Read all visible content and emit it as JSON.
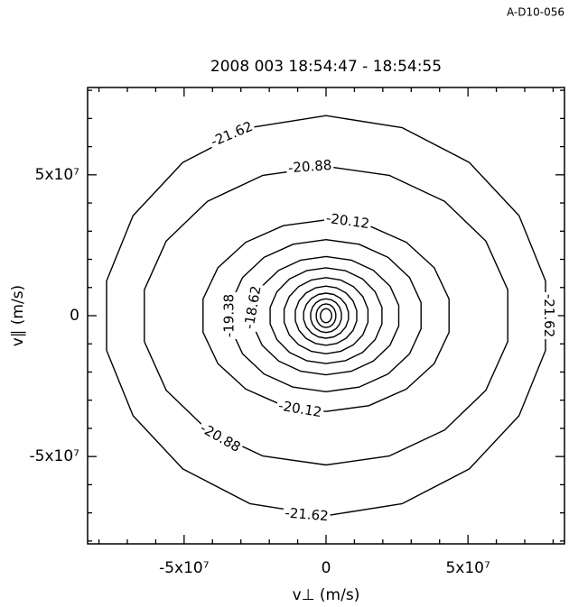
{
  "corner_label": "A-D10-056",
  "chart_data": {
    "type": "contour",
    "title": "2008 003 18:54:47 - 18:54:55",
    "xlabel": "v⊥ (m/s)",
    "ylabel": "v∥ (m/s)",
    "xlim": [
      -84000000,
      84000000
    ],
    "ylim": [
      -81000000,
      81000000
    ],
    "xticks": [
      {
        "value": -50000000,
        "label": "-5x10⁷"
      },
      0,
      {
        "value": 50000000,
        "label": "5x10⁷"
      }
    ],
    "yticks": [
      {
        "value": -50000000,
        "label": "-5x10⁷"
      },
      0,
      {
        "value": 50000000,
        "label": "5x10⁷"
      }
    ],
    "xminorticks": [
      -80000000,
      -70000000,
      -60000000,
      -40000000,
      -30000000,
      -20000000,
      -10000000,
      10000000,
      20000000,
      30000000,
      40000000,
      60000000,
      70000000,
      80000000
    ],
    "yminorticks": [
      -80000000,
      -70000000,
      -60000000,
      -40000000,
      -30000000,
      -20000000,
      -10000000,
      10000000,
      20000000,
      30000000,
      40000000,
      60000000,
      70000000,
      80000000
    ],
    "contours": [
      {
        "level": -21.62,
        "show_label": true,
        "rx": 78500000,
        "ry": 71000000
      },
      {
        "level": -20.88,
        "show_label": true,
        "rx": 65000000,
        "ry": 53000000
      },
      {
        "level": -20.12,
        "show_label": true,
        "rx": 44000000,
        "ry": 34000000
      },
      {
        "level": -19.38,
        "show_label": true,
        "rx": 34000000,
        "ry": 27000000
      },
      {
        "level": -18.62,
        "show_label": true,
        "rx": 26000000,
        "ry": 21000000
      },
      {
        "level": -17.86,
        "show_label": false,
        "rx": 20000000,
        "ry": 17000000
      },
      {
        "level": -17.1,
        "show_label": false,
        "rx": 15000000,
        "ry": 13500000
      },
      {
        "level": -16.34,
        "show_label": false,
        "rx": 11000000,
        "ry": 10500000
      },
      {
        "level": -15.58,
        "show_label": false,
        "rx": 8000000,
        "ry": 8000000
      },
      {
        "level": -14.82,
        "show_label": false,
        "rx": 5500000,
        "ry": 6000000
      },
      {
        "level": -14.06,
        "show_label": false,
        "rx": 3500000,
        "ry": 4200000
      },
      {
        "level": -13.3,
        "show_label": false,
        "rx": 2000000,
        "ry": 2500000
      }
    ]
  }
}
